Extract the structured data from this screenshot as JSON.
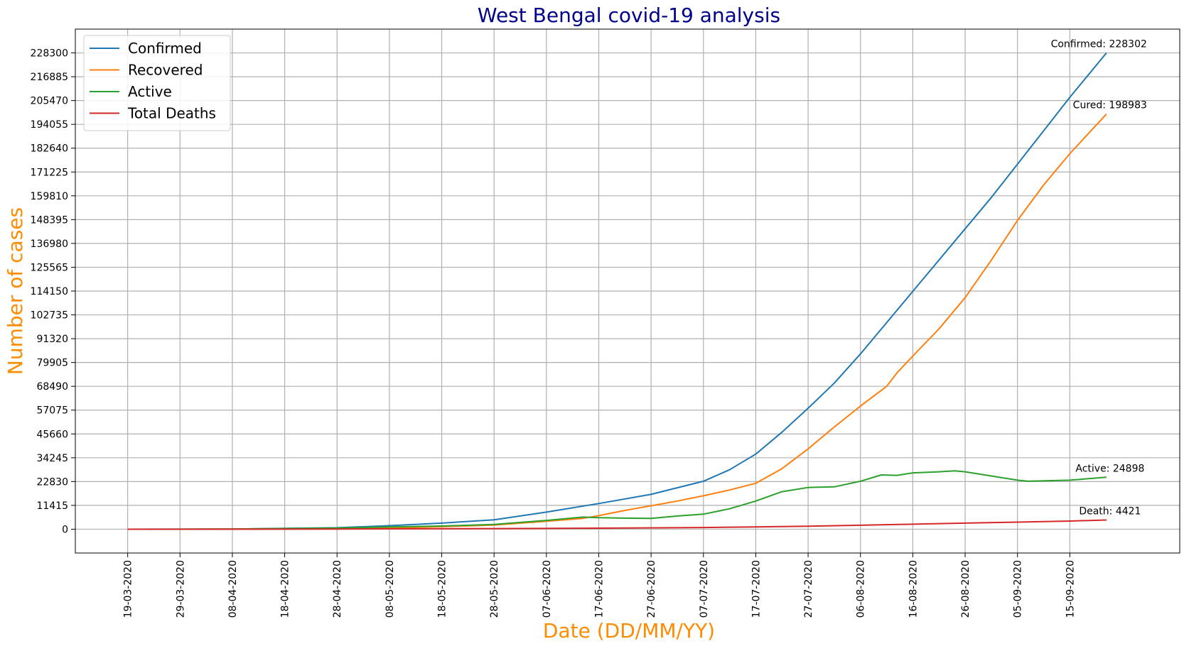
{
  "chart_data": {
    "type": "line",
    "title": "West Bengal covid-19 analysis",
    "xlabel": "Date (DD/MM/YY)",
    "ylabel": "Number of cases",
    "title_color": "#00008b",
    "label_color": "#ff8c00",
    "grid": true,
    "legend_position": "top-left",
    "x_ticks": [
      "19-03-2020",
      "29-03-2020",
      "08-04-2020",
      "18-04-2020",
      "28-04-2020",
      "08-05-2020",
      "18-05-2020",
      "28-05-2020",
      "07-06-2020",
      "17-06-2020",
      "27-06-2020",
      "07-07-2020",
      "17-07-2020",
      "27-07-2020",
      "06-08-2020",
      "16-08-2020",
      "26-08-2020",
      "05-09-2020",
      "15-09-2020"
    ],
    "x_range": [
      "09-03-2020",
      "06-10-2020"
    ],
    "y_ticks": [
      0,
      11415,
      22830,
      34245,
      45660,
      57075,
      68490,
      79905,
      91320,
      102735,
      114150,
      125565,
      136980,
      148395,
      159810,
      171225,
      182640,
      194055,
      205470,
      216885,
      228300
    ],
    "ylim": [
      -11415,
      239715
    ],
    "series": [
      {
        "name": "Confirmed",
        "color": "#1f77b4",
        "points": [
          [
            "19-03-2020",
            1
          ],
          [
            "08-04-2020",
            100
          ],
          [
            "28-04-2020",
            700
          ],
          [
            "08-05-2020",
            1700
          ],
          [
            "18-05-2020",
            2900
          ],
          [
            "28-05-2020",
            4500
          ],
          [
            "07-06-2020",
            8200
          ],
          [
            "17-06-2020",
            12300
          ],
          [
            "27-06-2020",
            16700
          ],
          [
            "07-07-2020",
            23000
          ],
          [
            "12-07-2020",
            28500
          ],
          [
            "17-07-2020",
            36000
          ],
          [
            "22-07-2020",
            46500
          ],
          [
            "27-07-2020",
            58000
          ],
          [
            "01-08-2020",
            70000
          ],
          [
            "06-08-2020",
            84000
          ],
          [
            "11-08-2020",
            99000
          ],
          [
            "16-08-2020",
            114000
          ],
          [
            "21-08-2020",
            129000
          ],
          [
            "26-08-2020",
            144000
          ],
          [
            "31-08-2020",
            159000
          ],
          [
            "05-09-2020",
            175000
          ],
          [
            "10-09-2020",
            191000
          ],
          [
            "15-09-2020",
            207000
          ],
          [
            "22-09-2020",
            228302
          ]
        ]
      },
      {
        "name": "Recovered",
        "color": "#ff7f0e",
        "points": [
          [
            "19-03-2020",
            0
          ],
          [
            "08-04-2020",
            20
          ],
          [
            "28-04-2020",
            150
          ],
          [
            "08-05-2020",
            500
          ],
          [
            "18-05-2020",
            1200
          ],
          [
            "28-05-2020",
            2000
          ],
          [
            "07-06-2020",
            3800
          ],
          [
            "14-06-2020",
            5200
          ],
          [
            "17-06-2020",
            6500
          ],
          [
            "22-06-2020",
            9000
          ],
          [
            "27-06-2020",
            11200
          ],
          [
            "02-07-2020",
            13500
          ],
          [
            "07-07-2020",
            16000
          ],
          [
            "12-07-2020",
            18800
          ],
          [
            "17-07-2020",
            22000
          ],
          [
            "22-07-2020",
            29000
          ],
          [
            "27-07-2020",
            38500
          ],
          [
            "01-08-2020",
            49000
          ],
          [
            "06-08-2020",
            59000
          ],
          [
            "11-08-2020",
            68500
          ],
          [
            "13-08-2020",
            75000
          ],
          [
            "16-08-2020",
            83000
          ],
          [
            "21-08-2020",
            96000
          ],
          [
            "26-08-2020",
            111000
          ],
          [
            "31-08-2020",
            129000
          ],
          [
            "05-09-2020",
            148000
          ],
          [
            "10-09-2020",
            165000
          ],
          [
            "15-09-2020",
            180000
          ],
          [
            "22-09-2020",
            198983
          ]
        ]
      },
      {
        "name": "Active",
        "color": "#2ca02c",
        "points": [
          [
            "19-03-2020",
            1
          ],
          [
            "08-04-2020",
            80
          ],
          [
            "28-04-2020",
            550
          ],
          [
            "08-05-2020",
            1100
          ],
          [
            "18-05-2020",
            1500
          ],
          [
            "28-05-2020",
            2300
          ],
          [
            "07-06-2020",
            4200
          ],
          [
            "14-06-2020",
            5800
          ],
          [
            "17-06-2020",
            5500
          ],
          [
            "22-06-2020",
            5300
          ],
          [
            "27-06-2020",
            5200
          ],
          [
            "02-07-2020",
            6300
          ],
          [
            "07-07-2020",
            7200
          ],
          [
            "12-07-2020",
            9800
          ],
          [
            "17-07-2020",
            13500
          ],
          [
            "22-07-2020",
            18000
          ],
          [
            "27-07-2020",
            20000
          ],
          [
            "01-08-2020",
            20300
          ],
          [
            "06-08-2020",
            23000
          ],
          [
            "10-08-2020",
            26000
          ],
          [
            "13-08-2020",
            25800
          ],
          [
            "16-08-2020",
            27000
          ],
          [
            "21-08-2020",
            27500
          ],
          [
            "24-08-2020",
            28000
          ],
          [
            "26-08-2020",
            27500
          ],
          [
            "31-08-2020",
            25500
          ],
          [
            "05-09-2020",
            23500
          ],
          [
            "07-09-2020",
            23000
          ],
          [
            "15-09-2020",
            23500
          ],
          [
            "22-09-2020",
            24898
          ]
        ]
      },
      {
        "name": "Total Deaths",
        "color": "#d62728",
        "points": [
          [
            "19-03-2020",
            0
          ],
          [
            "08-04-2020",
            10
          ],
          [
            "28-04-2020",
            40
          ],
          [
            "08-05-2020",
            150
          ],
          [
            "28-05-2020",
            300
          ],
          [
            "17-06-2020",
            500
          ],
          [
            "07-07-2020",
            800
          ],
          [
            "17-07-2020",
            1100
          ],
          [
            "27-07-2020",
            1450
          ],
          [
            "06-08-2020",
            1900
          ],
          [
            "16-08-2020",
            2400
          ],
          [
            "26-08-2020",
            2900
          ],
          [
            "05-09-2020",
            3400
          ],
          [
            "15-09-2020",
            3900
          ],
          [
            "22-09-2020",
            4421
          ]
        ]
      }
    ],
    "annotations": [
      {
        "text": "Confirmed: 228302",
        "x": "22-09-2020",
        "y": 228302,
        "anchor": "end"
      },
      {
        "text": "Cured: 198983",
        "x": "22-09-2020",
        "y": 198983,
        "anchor": "end"
      },
      {
        "text": "Active: 24898",
        "x": "22-09-2020",
        "y": 24898,
        "anchor": "middle"
      },
      {
        "text": "Death: 4421",
        "x": "22-09-2020",
        "y": 4421,
        "anchor": "middle"
      }
    ]
  }
}
